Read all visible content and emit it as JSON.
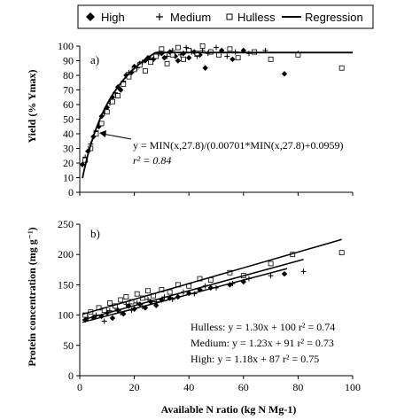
{
  "chart_data": [
    {
      "type": "scatter",
      "panel_label": "a)",
      "ylabel": "Yield (% Ymax)",
      "xlim": [
        0,
        100
      ],
      "ylim": [
        0,
        100
      ],
      "yticks": [
        "0",
        "10",
        "20",
        "30",
        "40",
        "50",
        "60",
        "70",
        "80",
        "90",
        "100"
      ],
      "equation": "y = MIN(x,27.8)/(0.00701*MIN(x,27.8)+0.0959)",
      "r2_text": "r² = 0.84",
      "regression_plateau": 27.8,
      "regression_a": 0.00701,
      "regression_b": 0.0959,
      "series": [
        {
          "name": "High",
          "marker": "diamond",
          "points": [
            [
              1,
              19
            ],
            [
              3,
              28
            ],
            [
              5,
              38
            ],
            [
              7,
              45
            ],
            [
              8,
              52
            ],
            [
              10,
              58
            ],
            [
              12,
              65
            ],
            [
              14,
              72
            ],
            [
              15,
              70
            ],
            [
              17,
              80
            ],
            [
              19,
              82
            ],
            [
              20,
              86
            ],
            [
              22,
              88
            ],
            [
              24,
              90
            ],
            [
              25,
              92
            ],
            [
              27,
              91
            ],
            [
              28,
              93
            ],
            [
              30,
              95
            ],
            [
              31,
              92
            ],
            [
              33,
              96
            ],
            [
              35,
              93
            ],
            [
              36,
              90
            ],
            [
              38,
              95
            ],
            [
              40,
              92
            ],
            [
              42,
              96
            ],
            [
              44,
              94
            ],
            [
              46,
              85
            ],
            [
              48,
              96
            ],
            [
              52,
              97
            ],
            [
              56,
              91
            ],
            [
              60,
              97
            ],
            [
              75,
              81
            ]
          ]
        },
        {
          "name": "Medium",
          "marker": "plus",
          "points": [
            [
              2,
              24
            ],
            [
              4,
              33
            ],
            [
              6,
              42
            ],
            [
              9,
              54
            ],
            [
              11,
              61
            ],
            [
              13,
              68
            ],
            [
              16,
              76
            ],
            [
              18,
              82
            ],
            [
              21,
              85
            ],
            [
              23,
              89
            ],
            [
              26,
              91
            ],
            [
              29,
              95
            ],
            [
              32,
              93
            ],
            [
              34,
              97
            ],
            [
              37,
              94
            ],
            [
              39,
              99
            ],
            [
              41,
              96
            ],
            [
              43,
              93
            ],
            [
              45,
              97
            ],
            [
              47,
              95
            ],
            [
              50,
              99
            ],
            [
              54,
              93
            ],
            [
              57,
              96
            ],
            [
              62,
              95
            ],
            [
              68,
              97
            ],
            [
              80,
              95
            ]
          ]
        },
        {
          "name": "Hulless",
          "marker": "square",
          "points": [
            [
              2,
              22
            ],
            [
              4,
              30
            ],
            [
              6,
              40
            ],
            [
              8,
              47
            ],
            [
              10,
              55
            ],
            [
              12,
              62
            ],
            [
              14,
              66
            ],
            [
              16,
              74
            ],
            [
              18,
              79
            ],
            [
              20,
              84
            ],
            [
              22,
              87
            ],
            [
              24,
              83
            ],
            [
              26,
              89
            ],
            [
              28,
              93
            ],
            [
              30,
              98
            ],
            [
              32,
              88
            ],
            [
              34,
              94
            ],
            [
              36,
              99
            ],
            [
              38,
              91
            ],
            [
              40,
              97
            ],
            [
              43,
              95
            ],
            [
              45,
              100
            ],
            [
              48,
              96
            ],
            [
              51,
              94
            ],
            [
              55,
              98
            ],
            [
              58,
              92
            ],
            [
              64,
              96
            ],
            [
              70,
              91
            ],
            [
              80,
              94
            ],
            [
              96,
              85
            ]
          ]
        }
      ]
    },
    {
      "type": "scatter",
      "panel_label": "b)",
      "ylabel": "Protein concentration (mg g⁻¹)",
      "xlabel": "Available N ratio (kg N Mg-1)",
      "xlim": [
        0,
        100
      ],
      "ylim": [
        0,
        250
      ],
      "xticks": [
        "0",
        "20",
        "40",
        "60",
        "80",
        "100"
      ],
      "yticks": [
        "0",
        "50",
        "100",
        "150",
        "200",
        "250"
      ],
      "regressions": [
        {
          "name": "Hulless",
          "slope": 1.3,
          "intercept": 100,
          "x_range": [
            1,
            96
          ],
          "text": "Hulless: y = 1.30x + 100  r² = 0.74"
        },
        {
          "name": "Medium",
          "slope": 1.23,
          "intercept": 91,
          "x_range": [
            1,
            82
          ],
          "text": "Medium: y = 1.23x + 91  r² = 0.73"
        },
        {
          "name": "High",
          "slope": 1.18,
          "intercept": 87,
          "x_range": [
            1,
            76
          ],
          "text": "High: y = 1.18x + 87  r² = 0.75"
        }
      ],
      "series": [
        {
          "name": "High",
          "marker": "diamond",
          "points": [
            [
              2,
              92
            ],
            [
              5,
              96
            ],
            [
              8,
              98
            ],
            [
              10,
              104
            ],
            [
              12,
              95
            ],
            [
              14,
              108
            ],
            [
              16,
              102
            ],
            [
              18,
              115
            ],
            [
              20,
              110
            ],
            [
              22,
              118
            ],
            [
              24,
              112
            ],
            [
              26,
              122
            ],
            [
              28,
              116
            ],
            [
              30,
              125
            ],
            [
              33,
              128
            ],
            [
              36,
              130
            ],
            [
              40,
              136
            ],
            [
              44,
              142
            ],
            [
              48,
              145
            ],
            [
              55,
              150
            ],
            [
              60,
              155
            ],
            [
              75,
              168
            ]
          ]
        },
        {
          "name": "Medium",
          "marker": "plus",
          "points": [
            [
              3,
              95
            ],
            [
              6,
              100
            ],
            [
              9,
              90
            ],
            [
              11,
              107
            ],
            [
              13,
              112
            ],
            [
              15,
              104
            ],
            [
              17,
              118
            ],
            [
              19,
              108
            ],
            [
              21,
              120
            ],
            [
              23,
              114
            ],
            [
              25,
              126
            ],
            [
              28,
              122
            ],
            [
              31,
              130
            ],
            [
              34,
              126
            ],
            [
              38,
              138
            ],
            [
              42,
              135
            ],
            [
              46,
              148
            ],
            [
              50,
              145
            ],
            [
              56,
              152
            ],
            [
              62,
              160
            ],
            [
              70,
              165
            ],
            [
              82,
              172
            ]
          ]
        },
        {
          "name": "Hulless",
          "marker": "square",
          "points": [
            [
              2,
              100
            ],
            [
              4,
              105
            ],
            [
              7,
              112
            ],
            [
              9,
              108
            ],
            [
              11,
              120
            ],
            [
              13,
              115
            ],
            [
              15,
              125
            ],
            [
              17,
              130
            ],
            [
              19,
              122
            ],
            [
              21,
              135
            ],
            [
              23,
              128
            ],
            [
              25,
              140
            ],
            [
              27,
              132
            ],
            [
              30,
              142
            ],
            [
              33,
              138
            ],
            [
              36,
              150
            ],
            [
              40,
              148
            ],
            [
              44,
              160
            ],
            [
              48,
              158
            ],
            [
              55,
              170
            ],
            [
              60,
              165
            ],
            [
              70,
              185
            ],
            [
              78,
              200
            ],
            [
              96,
              203
            ]
          ]
        }
      ]
    }
  ],
  "legend": {
    "items": [
      {
        "label": "High",
        "marker": "diamond"
      },
      {
        "label": "Medium",
        "marker": "plus"
      },
      {
        "label": "Hulless",
        "marker": "square"
      },
      {
        "label": "Regression",
        "marker": "line"
      }
    ]
  }
}
